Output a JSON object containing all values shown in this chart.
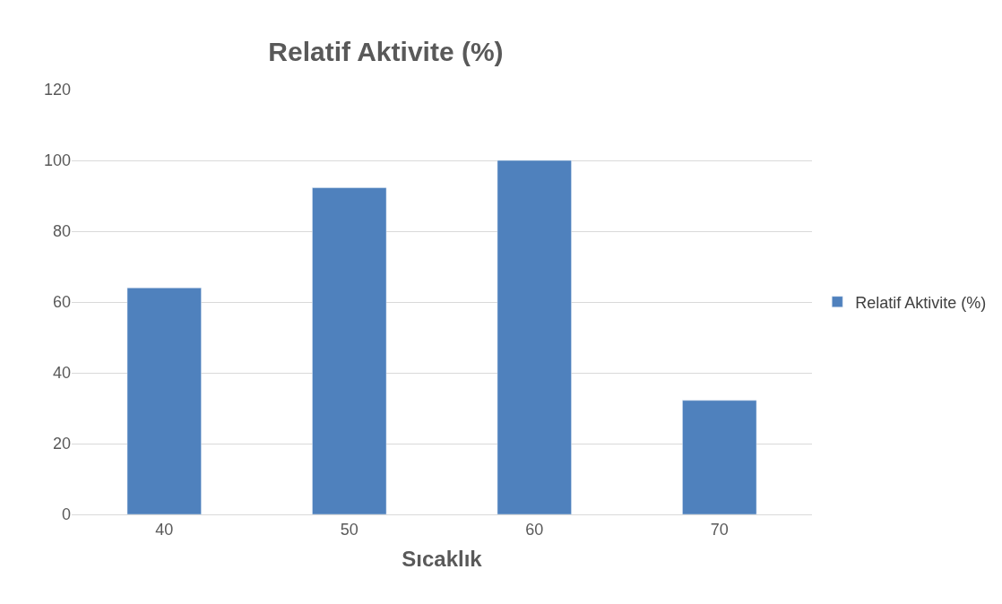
{
  "chart_data": {
    "type": "bar",
    "title": "Relatif Aktivite (%)",
    "xlabel": "Sıcaklık",
    "categories": [
      "40",
      "50",
      "60",
      "70"
    ],
    "series": [
      {
        "name": "Relatif Aktivite (%)",
        "color": "#4f81bd",
        "values": [
          64,
          92.3,
          100,
          32.2
        ]
      }
    ],
    "ylim": [
      0,
      120
    ],
    "yticks": [
      0,
      20,
      40,
      60,
      80,
      100,
      120
    ],
    "grid": "y",
    "legend": "right"
  }
}
